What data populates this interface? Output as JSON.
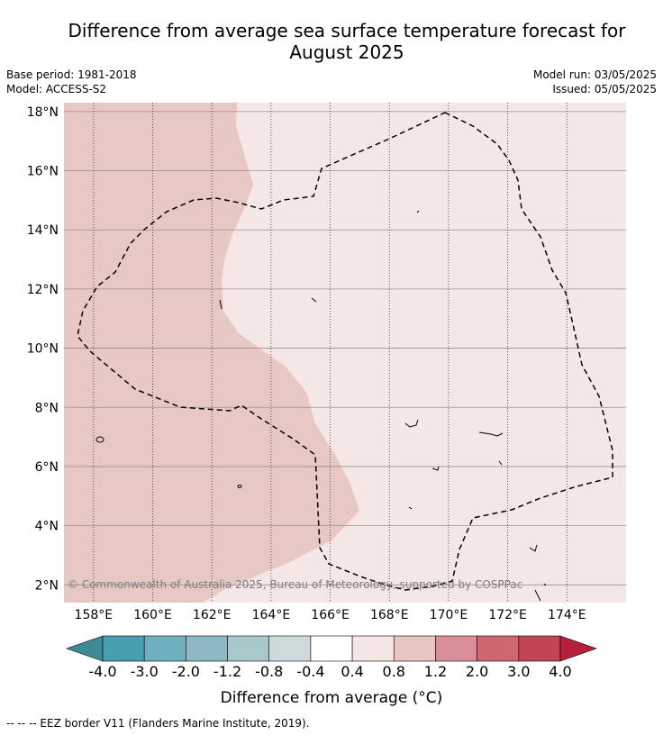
{
  "title": "Difference from average sea surface temperature forecast for August 2025",
  "meta": {
    "base_period": "Base period: 1981-2018",
    "model": "Model: ACCESS-S2",
    "model_run": "Model run: 03/05/2025",
    "issued": "Issued: 05/05/2025"
  },
  "axes": {
    "lat_labels": [
      "18°N",
      "16°N",
      "14°N",
      "12°N",
      "10°N",
      "8°N",
      "6°N",
      "4°N",
      "2°N"
    ],
    "lat_values": [
      18,
      16,
      14,
      12,
      10,
      8,
      6,
      4,
      2
    ],
    "lon_labels": [
      "158°E",
      "160°E",
      "162°E",
      "164°E",
      "166°E",
      "168°E",
      "170°E",
      "172°E",
      "174°E"
    ],
    "lon_values": [
      158,
      160,
      162,
      164,
      166,
      168,
      170,
      172,
      174
    ],
    "lat_range": [
      1.4,
      18.3
    ],
    "lon_range": [
      157.0,
      176.0
    ]
  },
  "colorbar": {
    "title": "Difference from average (°C)",
    "tick_labels": [
      "-4.0",
      "-3.0",
      "-2.0",
      "-1.2",
      "-0.8",
      "-0.4",
      "0.4",
      "0.8",
      "1.2",
      "2.0",
      "3.0",
      "4.0"
    ],
    "colors": [
      "#4a9eb2",
      "#6eb0c0",
      "#8dbac5",
      "#a9c8cc",
      "#cddbdc",
      "#ffffff",
      "#f5e6e5",
      "#e8c6c2",
      "#d88e97",
      "#cd6872",
      "#c24555"
    ],
    "under_color": "#3f8a97",
    "over_color": "#b5203c"
  },
  "map": {
    "background_category": "0.4 to 0.8",
    "background_color": "#f5e7e6",
    "anomaly_region_category": "0.8 to 1.2",
    "anomaly_region_color": "#e8c8c4",
    "copyright": "© Commonwealth of Australia 2025, Bureau of Meteorology, supported by COSPPac"
  },
  "footnote": "--  --  -- EEZ border V11 (Flanders Marine Institute, 2019)."
}
